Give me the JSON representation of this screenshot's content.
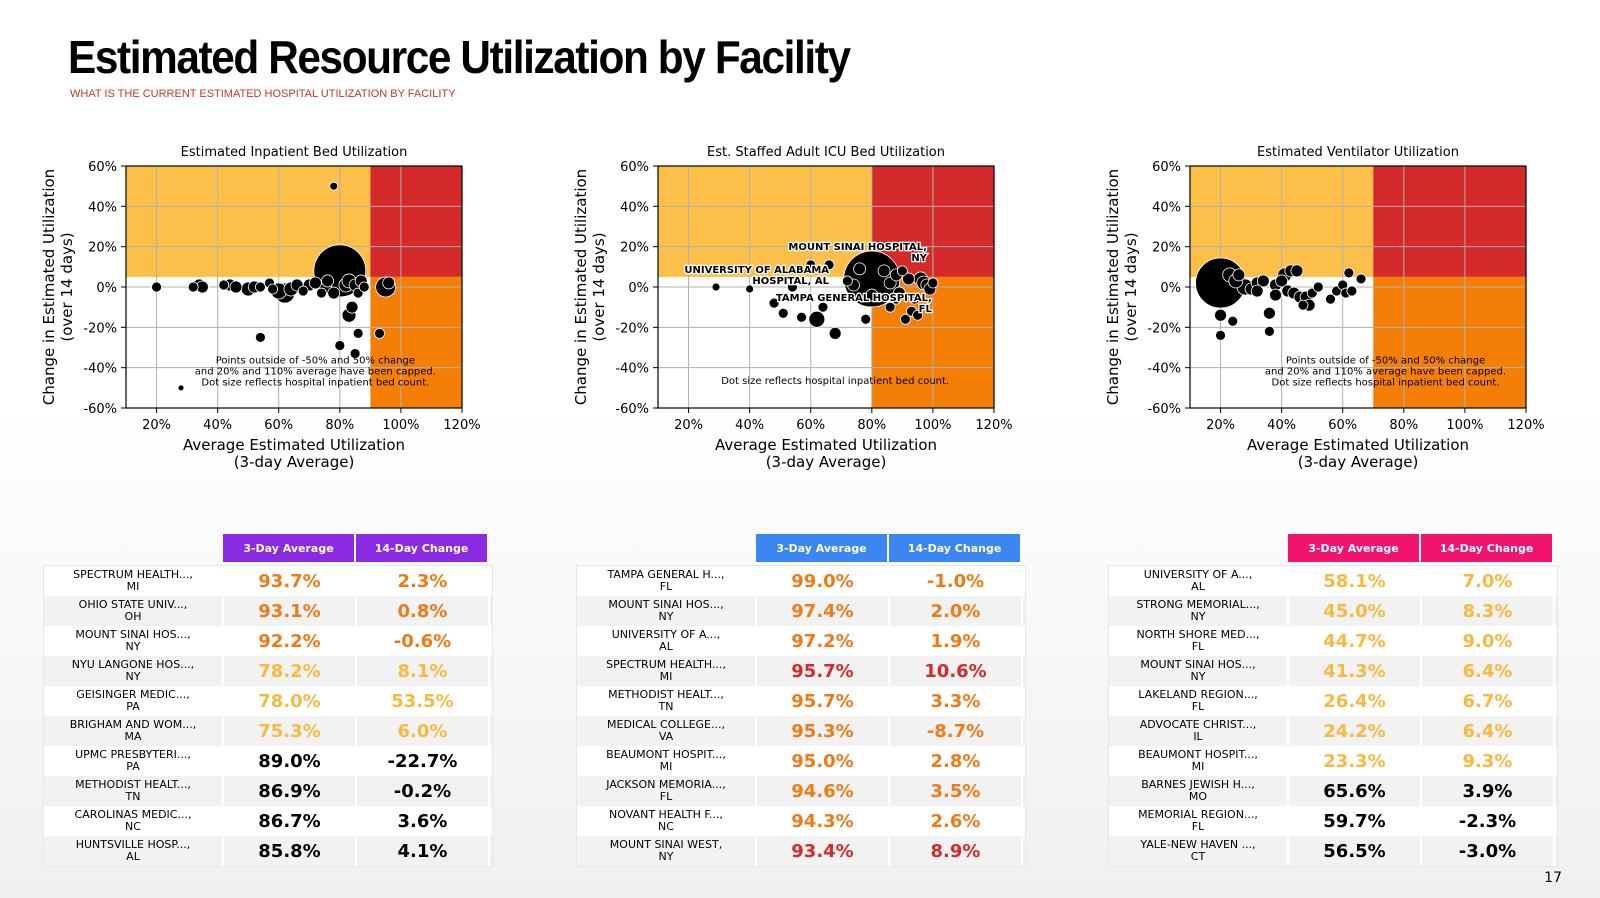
{
  "page": {
    "title": "Estimated Resource Utilization by Facility",
    "subtitle": "WHAT IS THE CURRENT ESTIMATED HOSPITAL UTILIZATION BY FACILITY",
    "page_number": "17"
  },
  "colors": {
    "zone_yellow": "#fbbf4a",
    "zone_red": "#d42a2a",
    "zone_orange": "#f57f06",
    "val_orange": "#f07a16",
    "val_yellow": "#f9b940",
    "val_red": "#d42a2a",
    "val_black": "#000000"
  },
  "chart_data": [
    {
      "type": "scatter",
      "title": "Estimated Inpatient Bed Utilization",
      "xlabel": "Average Estimated Utilization",
      "xlabel2": "(3-day Average)",
      "ylabel": "Change in Estimated Utilization",
      "ylabel2": "(over 14 days)",
      "xlim": [
        10,
        120
      ],
      "ylim": [
        -60,
        60
      ],
      "xticks": [
        20,
        40,
        60,
        80,
        100,
        120
      ],
      "yticks": [
        -60,
        -40,
        -20,
        0,
        20,
        40,
        60
      ],
      "zones": {
        "x_threshold": 90,
        "y_threshold": 5
      },
      "grid": true,
      "note": [
        "Points outside of -50% and 50% change",
        "and 20% and 110% average have been capped.",
        "Dot size reflects hospital inpatient bed count."
      ],
      "labels": [],
      "points": [
        [
          78,
          50,
          4
        ],
        [
          20,
          0,
          5
        ],
        [
          32,
          0,
          5
        ],
        [
          34,
          1,
          6
        ],
        [
          35,
          0,
          6
        ],
        [
          42,
          1,
          5
        ],
        [
          44,
          1,
          6
        ],
        [
          46,
          0,
          6
        ],
        [
          50,
          -1,
          7
        ],
        [
          52,
          0,
          6
        ],
        [
          54,
          0,
          5
        ],
        [
          57,
          2,
          5
        ],
        [
          58,
          -1,
          5
        ],
        [
          60,
          -2,
          8
        ],
        [
          62,
          -3,
          10
        ],
        [
          64,
          -1,
          7
        ],
        [
          66,
          1,
          6
        ],
        [
          68,
          -2,
          5
        ],
        [
          70,
          1,
          6
        ],
        [
          72,
          2,
          6
        ],
        [
          74,
          -3,
          5
        ],
        [
          75,
          0,
          7
        ],
        [
          76,
          3,
          6
        ],
        [
          78,
          -3,
          6
        ],
        [
          80,
          8,
          26
        ],
        [
          82,
          1,
          7
        ],
        [
          83,
          3,
          7
        ],
        [
          85,
          1,
          6
        ],
        [
          86,
          -3,
          5
        ],
        [
          87,
          3,
          6
        ],
        [
          88,
          0,
          5
        ],
        [
          84,
          -10,
          6
        ],
        [
          83,
          -14,
          7
        ],
        [
          86,
          -23,
          5
        ],
        [
          80,
          -29,
          5
        ],
        [
          85,
          -33,
          5
        ],
        [
          54,
          -25,
          5
        ],
        [
          93,
          -23,
          5
        ],
        [
          95,
          0,
          10
        ],
        [
          96,
          2,
          6
        ],
        [
          28,
          -50,
          3
        ]
      ]
    },
    {
      "type": "scatter",
      "title": "Est. Staffed Adult ICU Bed Utilization",
      "xlabel": "Average Estimated Utilization",
      "xlabel2": "(3-day Average)",
      "ylabel": "Change in Estimated Utilization",
      "ylabel2": "(over 14 days)",
      "xlim": [
        10,
        120
      ],
      "ylim": [
        -60,
        60
      ],
      "xticks": [
        20,
        40,
        60,
        80,
        100,
        120
      ],
      "yticks": [
        -60,
        -40,
        -20,
        0,
        20,
        40,
        60
      ],
      "zones": {
        "x_threshold": 80,
        "y_threshold": 5
      },
      "grid": true,
      "note": [
        "Dot size reflects hospital inpatient bed count."
      ],
      "labels": [
        {
          "lines": [
            "UNIVERSITY OF ALABAMA",
            "HOSPITAL, AL"
          ],
          "x": 97.2,
          "y": 1.9,
          "anchor": "end"
        },
        {
          "lines": [
            "MOUNT SINAI HOSPITAL,",
            "NY"
          ],
          "x": 97.4,
          "y": 2.0,
          "anchor": "end"
        },
        {
          "lines": [
            "TAMPA GENERAL HOSPITAL,",
            "FL"
          ],
          "x": 99.0,
          "y": -1.0,
          "anchor": "end"
        }
      ],
      "points": [
        [
          29,
          0,
          4
        ],
        [
          40,
          -1,
          4
        ],
        [
          48,
          -8,
          5
        ],
        [
          51,
          -13,
          5
        ],
        [
          54,
          0,
          5
        ],
        [
          57,
          -15,
          5
        ],
        [
          60,
          11,
          5
        ],
        [
          62,
          -16,
          8
        ],
        [
          64,
          -10,
          5
        ],
        [
          66,
          11,
          5
        ],
        [
          68,
          -23,
          6
        ],
        [
          70,
          -5,
          5
        ],
        [
          72,
          3,
          5
        ],
        [
          74,
          1,
          6
        ],
        [
          76,
          9,
          6
        ],
        [
          78,
          -16,
          5
        ],
        [
          80,
          -4,
          6
        ],
        [
          80,
          4,
          28
        ],
        [
          84,
          8,
          6
        ],
        [
          86,
          2,
          6
        ],
        [
          88,
          -6,
          5
        ],
        [
          89,
          -3,
          6
        ],
        [
          90,
          8,
          5
        ],
        [
          91,
          -16,
          5
        ],
        [
          92,
          4,
          6
        ],
        [
          93,
          -12,
          5
        ],
        [
          94,
          -6,
          5
        ],
        [
          95,
          -14,
          5
        ],
        [
          96,
          4,
          7
        ],
        [
          97,
          2,
          7
        ],
        [
          98,
          1,
          6
        ],
        [
          99,
          -1,
          6
        ],
        [
          100,
          2,
          5
        ],
        [
          88,
          6,
          6
        ],
        [
          86,
          -10,
          5
        ]
      ]
    },
    {
      "type": "scatter",
      "title": "Estimated Ventilator Utilization",
      "xlabel": "Average Estimated Utilization",
      "xlabel2": "(3-day Average)",
      "ylabel": "Change in Estimated Utilization",
      "ylabel2": "(over 14 days)",
      "xlim": [
        10,
        120
      ],
      "ylim": [
        -60,
        60
      ],
      "xticks": [
        20,
        40,
        60,
        80,
        100,
        120
      ],
      "yticks": [
        -60,
        -40,
        -20,
        0,
        20,
        40,
        60
      ],
      "zones": {
        "x_threshold": 70,
        "y_threshold": 5
      },
      "grid": true,
      "note": [
        "Points outside of -50% and 50% change",
        "and 20% and 110% average have been capped.",
        "Dot size reflects hospital inpatient bed count."
      ],
      "labels": [],
      "points": [
        [
          20,
          2,
          25
        ],
        [
          20,
          -14,
          6
        ],
        [
          20,
          -24,
          5
        ],
        [
          24,
          -17,
          5
        ],
        [
          23,
          6,
          7
        ],
        [
          25,
          3,
          7
        ],
        [
          26,
          6,
          6
        ],
        [
          28,
          0,
          8
        ],
        [
          30,
          -1,
          6
        ],
        [
          32,
          2,
          6
        ],
        [
          34,
          3,
          6
        ],
        [
          36,
          -13,
          6
        ],
        [
          36,
          -22,
          5
        ],
        [
          38,
          1,
          6
        ],
        [
          40,
          3,
          6
        ],
        [
          42,
          -2,
          6
        ],
        [
          41,
          6,
          7
        ],
        [
          43,
          8,
          6
        ],
        [
          44,
          -3,
          6
        ],
        [
          45,
          8,
          6
        ],
        [
          46,
          -5,
          6
        ],
        [
          47,
          -9,
          5
        ],
        [
          48,
          -5,
          6
        ],
        [
          49,
          -9,
          6
        ],
        [
          50,
          -3,
          5
        ],
        [
          52,
          0,
          5
        ],
        [
          56,
          -6,
          5
        ],
        [
          58,
          -2,
          5
        ],
        [
          60,
          1,
          5
        ],
        [
          61,
          -3,
          5
        ],
        [
          63,
          -2,
          5
        ],
        [
          62,
          7,
          5
        ],
        [
          66,
          4,
          5
        ],
        [
          38,
          -4,
          6
        ],
        [
          32,
          -2,
          6
        ]
      ]
    }
  ],
  "tables": [
    {
      "header_color": "#8a2be2",
      "col1": "3-Day Average",
      "col2": "14-Day Change",
      "rows": [
        {
          "name1": "SPECTRUM HEALTH...,",
          "name2": "MI",
          "avg": "93.7%",
          "chg": "2.3%",
          "color": "orange"
        },
        {
          "name1": "OHIO STATE UNIV...,",
          "name2": "OH",
          "avg": "93.1%",
          "chg": "0.8%",
          "color": "orange"
        },
        {
          "name1": "MOUNT SINAI HOS...,",
          "name2": "NY",
          "avg": "92.2%",
          "chg": "-0.6%",
          "color": "orange"
        },
        {
          "name1": "NYU LANGONE HOS...,",
          "name2": "NY",
          "avg": "78.2%",
          "chg": "8.1%",
          "color": "yellow"
        },
        {
          "name1": "GEISINGER MEDIC...,",
          "name2": "PA",
          "avg": "78.0%",
          "chg": "53.5%",
          "color": "yellow"
        },
        {
          "name1": "BRIGHAM AND WOM...,",
          "name2": "MA",
          "avg": "75.3%",
          "chg": "6.0%",
          "color": "yellow"
        },
        {
          "name1": "UPMC PRESBYTERI...,",
          "name2": "PA",
          "avg": "89.0%",
          "chg": "-22.7%",
          "color": "black"
        },
        {
          "name1": "METHODIST HEALT...,",
          "name2": "TN",
          "avg": "86.9%",
          "chg": "-0.2%",
          "color": "black"
        },
        {
          "name1": "CAROLINAS MEDIC...,",
          "name2": "NC",
          "avg": "86.7%",
          "chg": "3.6%",
          "color": "black"
        },
        {
          "name1": "HUNTSVILLE HOSP...,",
          "name2": "AL",
          "avg": "85.8%",
          "chg": "4.1%",
          "color": "black"
        }
      ]
    },
    {
      "header_color": "#3b86f0",
      "col1": "3-Day Average",
      "col2": "14-Day Change",
      "rows": [
        {
          "name1": "TAMPA GENERAL H...,",
          "name2": "FL",
          "avg": "99.0%",
          "chg": "-1.0%",
          "color": "orange"
        },
        {
          "name1": "MOUNT SINAI HOS...,",
          "name2": "NY",
          "avg": "97.4%",
          "chg": "2.0%",
          "color": "orange"
        },
        {
          "name1": "UNIVERSITY OF A...,",
          "name2": "AL",
          "avg": "97.2%",
          "chg": "1.9%",
          "color": "orange"
        },
        {
          "name1": "SPECTRUM HEALTH...,",
          "name2": "MI",
          "avg": "95.7%",
          "chg": "10.6%",
          "color": "red"
        },
        {
          "name1": "METHODIST HEALT...,",
          "name2": "TN",
          "avg": "95.7%",
          "chg": "3.3%",
          "color": "orange"
        },
        {
          "name1": "MEDICAL COLLEGE...,",
          "name2": "VA",
          "avg": "95.3%",
          "chg": "-8.7%",
          "color": "orange"
        },
        {
          "name1": "BEAUMONT HOSPIT...,",
          "name2": "MI",
          "avg": "95.0%",
          "chg": "2.8%",
          "color": "orange"
        },
        {
          "name1": "JACKSON MEMORIA...,",
          "name2": "FL",
          "avg": "94.6%",
          "chg": "3.5%",
          "color": "orange"
        },
        {
          "name1": "NOVANT HEALTH F...,",
          "name2": "NC",
          "avg": "94.3%",
          "chg": "2.6%",
          "color": "orange"
        },
        {
          "name1": "MOUNT SINAI WEST,",
          "name2": "NY",
          "avg": "93.4%",
          "chg": "8.9%",
          "color": "red"
        }
      ]
    },
    {
      "header_color": "#f0146e",
      "col1": "3-Day Average",
      "col2": "14-Day Change",
      "rows": [
        {
          "name1": "UNIVERSITY OF A...,",
          "name2": "AL",
          "avg": "58.1%",
          "chg": "7.0%",
          "color": "yellow"
        },
        {
          "name1": "STRONG MEMORIAL...,",
          "name2": "NY",
          "avg": "45.0%",
          "chg": "8.3%",
          "color": "yellow"
        },
        {
          "name1": "NORTH SHORE MED...,",
          "name2": "FL",
          "avg": "44.7%",
          "chg": "9.0%",
          "color": "yellow"
        },
        {
          "name1": "MOUNT SINAI HOS...,",
          "name2": "NY",
          "avg": "41.3%",
          "chg": "6.4%",
          "color": "yellow"
        },
        {
          "name1": "LAKELAND REGION...,",
          "name2": "FL",
          "avg": "26.4%",
          "chg": "6.7%",
          "color": "yellow"
        },
        {
          "name1": "ADVOCATE CHRIST...,",
          "name2": "IL",
          "avg": "24.2%",
          "chg": "6.4%",
          "color": "yellow"
        },
        {
          "name1": "BEAUMONT HOSPIT...,",
          "name2": "MI",
          "avg": "23.3%",
          "chg": "9.3%",
          "color": "yellow"
        },
        {
          "name1": "BARNES JEWISH H...,",
          "name2": "MO",
          "avg": "65.6%",
          "chg": "3.9%",
          "color": "black"
        },
        {
          "name1": "MEMORIAL REGION...,",
          "name2": "FL",
          "avg": "59.7%",
          "chg": "-2.3%",
          "color": "black"
        },
        {
          "name1": "YALE-NEW HAVEN ...,",
          "name2": "CT",
          "avg": "56.5%",
          "chg": "-3.0%",
          "color": "black"
        }
      ]
    }
  ]
}
